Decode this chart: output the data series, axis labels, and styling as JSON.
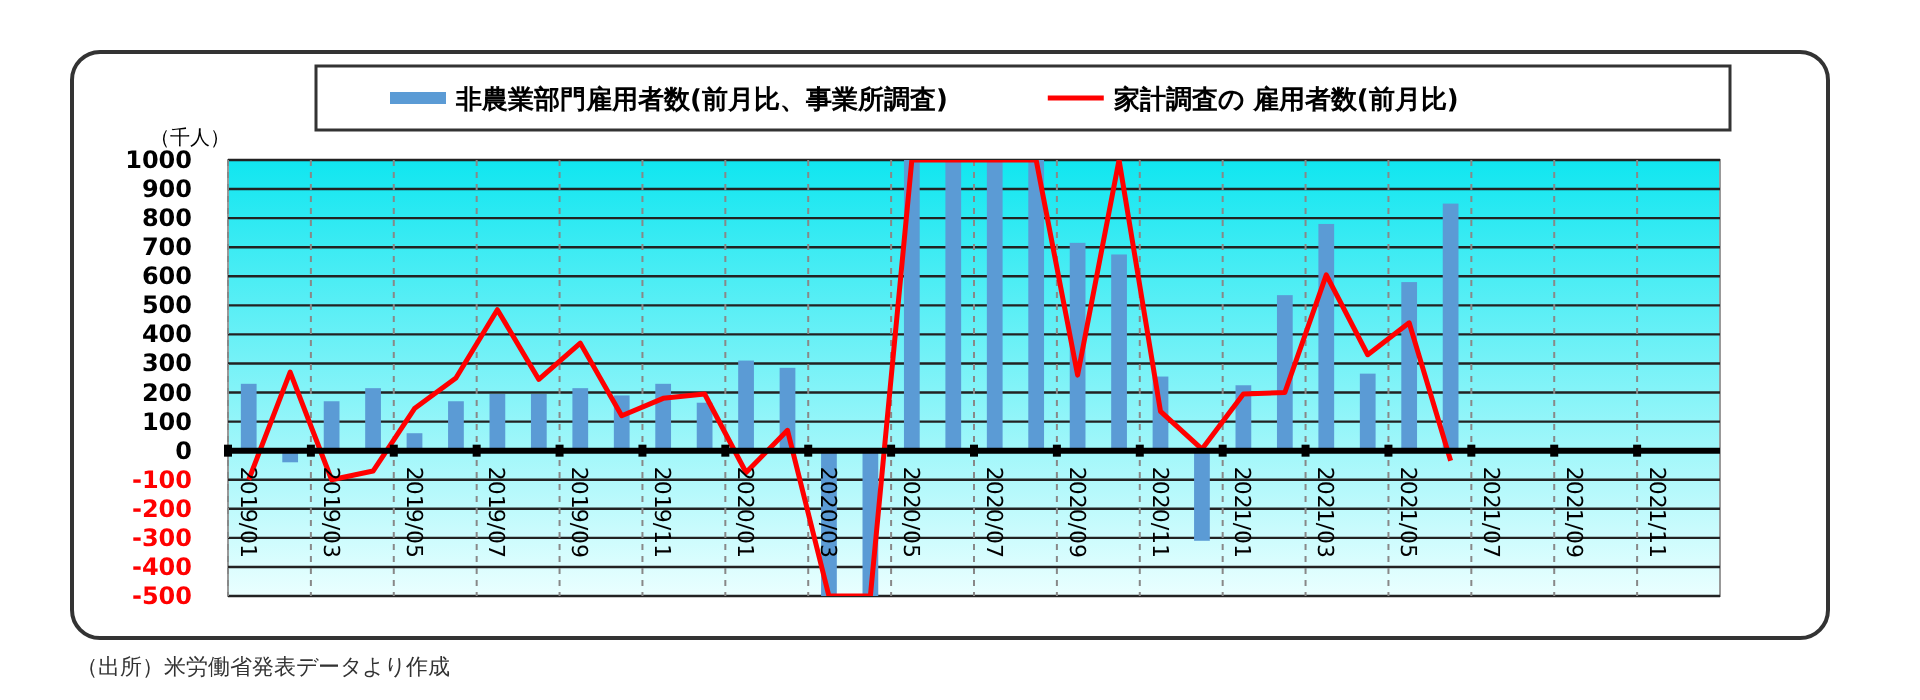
{
  "chart_data": {
    "type": "bar",
    "ylabel": "（千人）",
    "legend": "top",
    "grid": true,
    "categories": [
      "2019/01",
      null,
      "2019/03",
      null,
      "2019/05",
      null,
      "2019/07",
      null,
      "2019/09",
      null,
      "2019/11",
      null,
      "2020/01",
      null,
      "2020/03",
      null,
      "2020/05",
      null,
      "2020/07",
      null,
      "2020/09",
      null,
      "2020/11",
      null,
      "2021/01",
      null,
      "2021/03",
      null,
      "2021/05",
      null,
      "2021/07",
      null,
      "2021/09",
      null,
      "2021/11",
      null
    ],
    "series": [
      {
        "name": "非農業部門雇用者数(前月比、事業所調査)",
        "color": "#5b9bd5",
        "values": [
          230,
          -40,
          170,
          215,
          60,
          170,
          195,
          195,
          215,
          190,
          230,
          165,
          310,
          285,
          -500,
          -500,
          1000,
          1000,
          1000,
          1000,
          715,
          675,
          255,
          -310,
          225,
          535,
          780,
          265,
          580,
          850,
          null,
          null,
          null,
          null,
          null,
          null
        ]
      },
      {
        "name": "家計調査の 雇用者数(前月比)",
        "type": "line",
        "color": "#ff0000",
        "values": [
          -100,
          270,
          -100,
          -70,
          145,
          250,
          485,
          245,
          370,
          120,
          180,
          195,
          -75,
          70,
          -500,
          -500,
          1000,
          1000,
          1000,
          1000,
          260,
          1000,
          135,
          5,
          195,
          200,
          605,
          330,
          440,
          -35,
          null,
          null,
          null,
          null,
          null,
          null
        ]
      }
    ],
    "ylim": [
      -500,
      1000
    ],
    "yticks": [
      -500,
      -400,
      -300,
      -200,
      -100,
      0,
      100,
      200,
      300,
      400,
      500,
      600,
      700,
      800,
      900,
      1000
    ],
    "annotations": [
      "（出所）米労働省発表データより作成"
    ]
  }
}
